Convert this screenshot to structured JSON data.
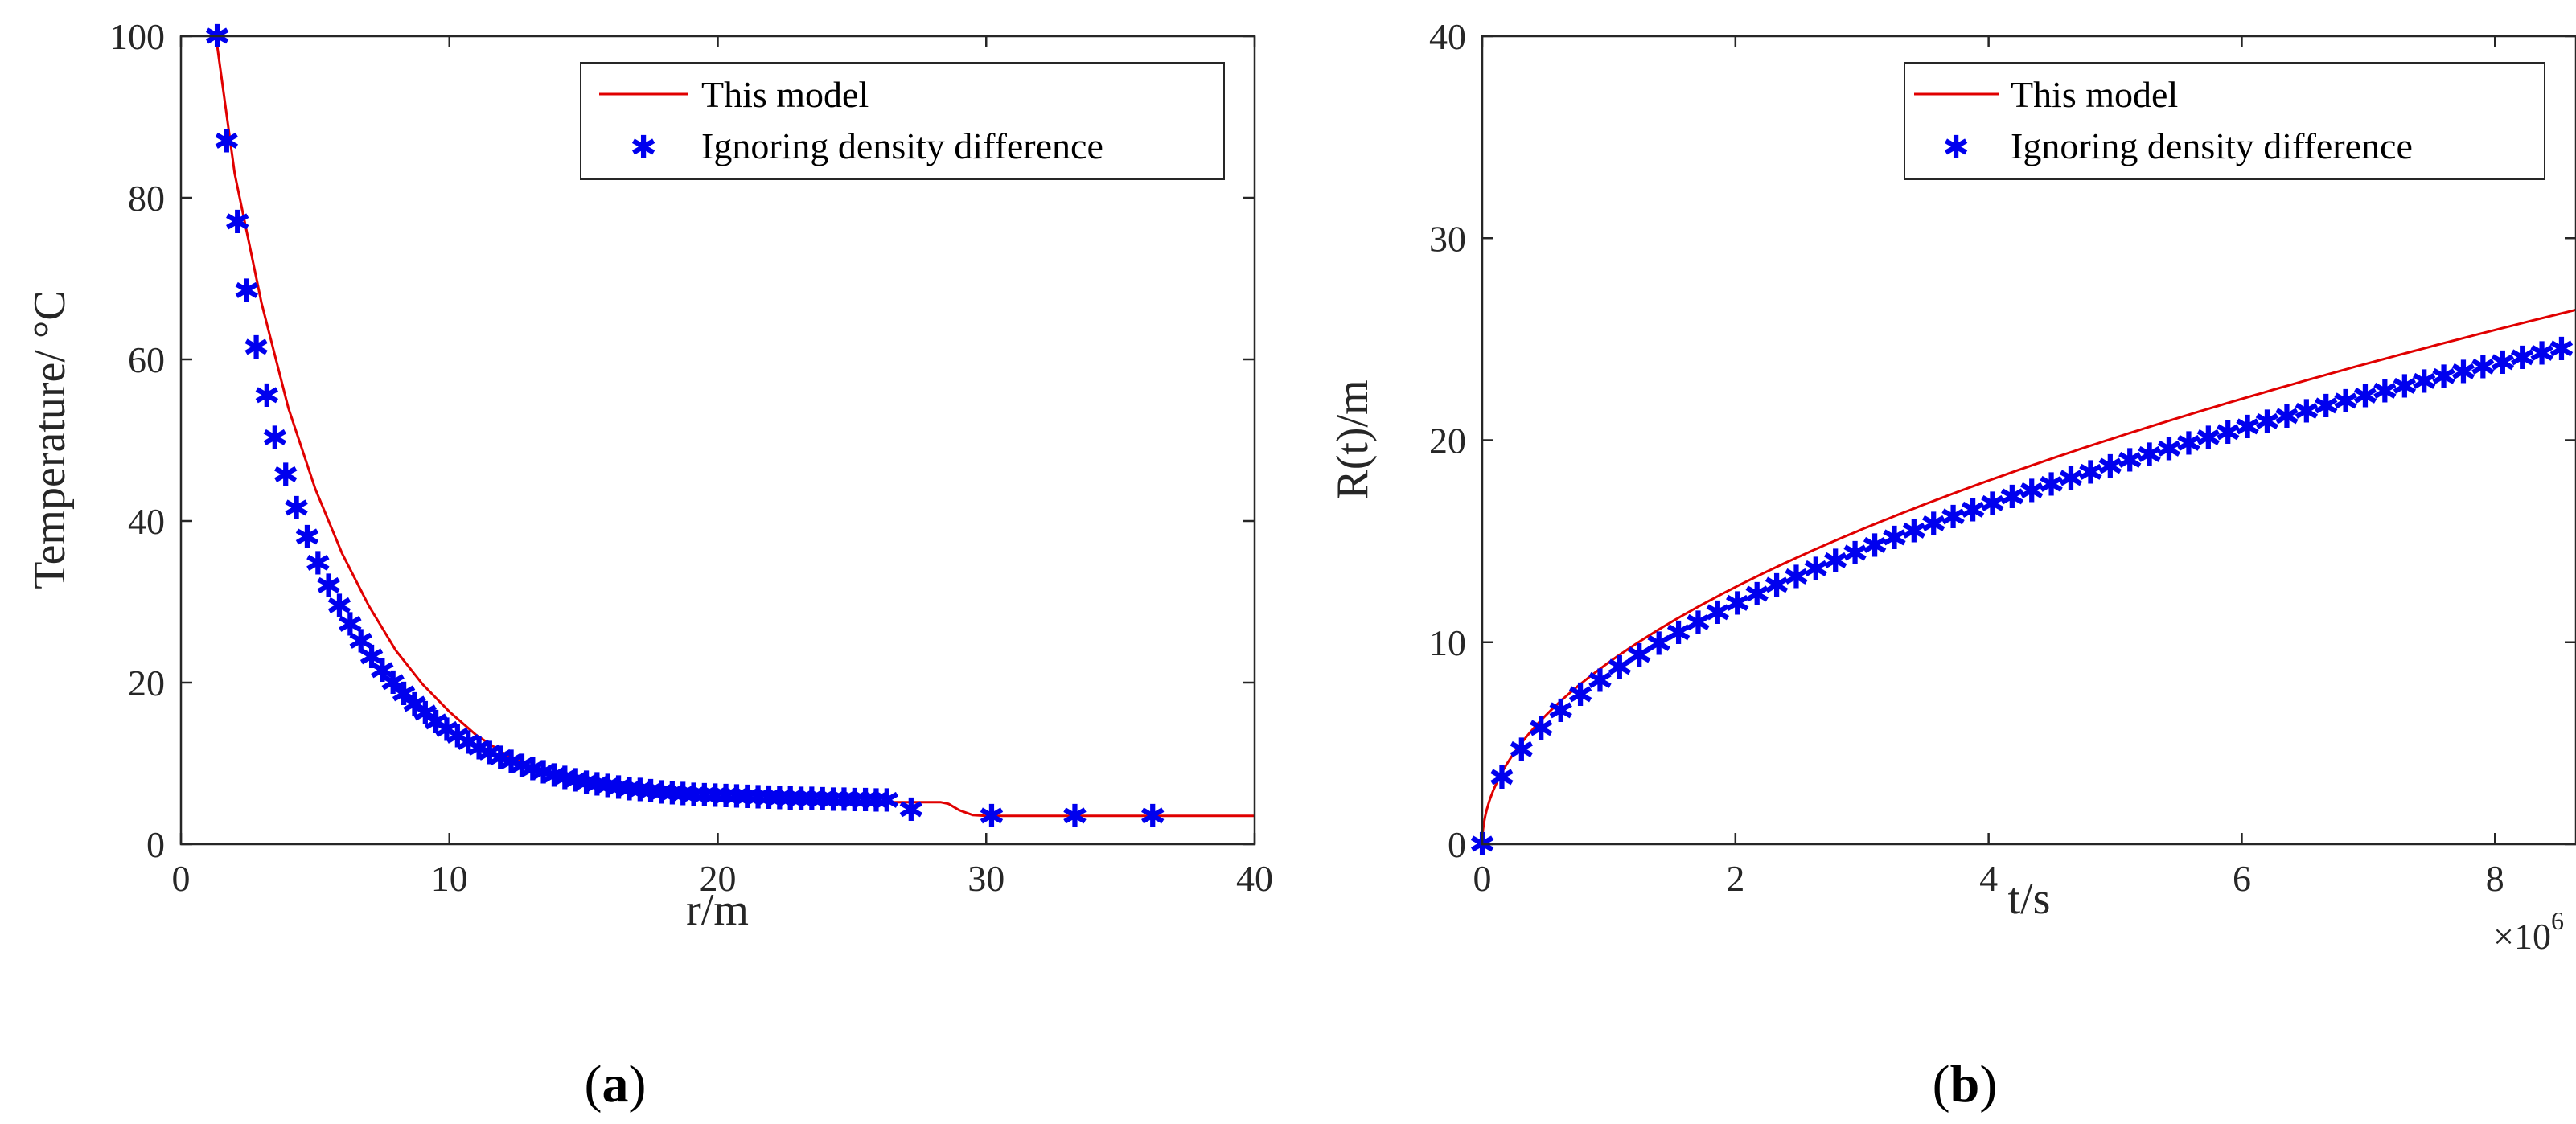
{
  "colors": {
    "model": "#e00000",
    "points": "#0000ee",
    "axis": "#262626"
  },
  "panels": [
    {
      "label": "a"
    },
    {
      "label": "b"
    }
  ],
  "chart_data": [
    {
      "type": "line",
      "panel": "a",
      "xlabel": "r/m",
      "ylabel": "Temperature/ °C",
      "xlim": [
        0,
        40
      ],
      "ylim": [
        0,
        100
      ],
      "xticks": [
        0,
        10,
        20,
        30,
        40
      ],
      "yticks": [
        0,
        20,
        40,
        60,
        80,
        100
      ],
      "legend": {
        "position": "top-right",
        "entries": [
          "This model",
          "Ignoring density difference"
        ]
      },
      "series": [
        {
          "name": "This model",
          "style": "line",
          "x": [
            1.3,
            2,
            3,
            4,
            5,
            6,
            7,
            8,
            9,
            10,
            11,
            12,
            13,
            14,
            15,
            16,
            18,
            20,
            22,
            24,
            26,
            28.3,
            28.6,
            29,
            29.5,
            30,
            32,
            35,
            38,
            40
          ],
          "y": [
            100,
            83,
            67,
            54,
            44,
            36,
            29.5,
            24,
            19.8,
            16.4,
            13.5,
            11.3,
            9.7,
            8.5,
            7.6,
            6.9,
            6.0,
            5.6,
            5.4,
            5.3,
            5.2,
            5.2,
            5.0,
            4.2,
            3.6,
            3.5,
            3.5,
            3.5,
            3.5,
            3.5
          ]
        },
        {
          "name": "Ignoring density difference",
          "style": "markers",
          "x": [
            1.35,
            1.7,
            2.1,
            2.45,
            2.8,
            3.2,
            3.5,
            3.9,
            4.3,
            4.7,
            5.1,
            5.5,
            5.9,
            6.3,
            6.7,
            7.1,
            7.5,
            7.9,
            8.3,
            8.7,
            9.1,
            9.5,
            9.9,
            10.3,
            10.7,
            11.1,
            11.5,
            11.9,
            12.3,
            12.7,
            13.1,
            13.5,
            13.9,
            14.3,
            14.7,
            15.1,
            15.5,
            15.9,
            16.3,
            16.7,
            17.1,
            17.5,
            17.9,
            18.3,
            18.7,
            19.1,
            19.5,
            19.9,
            20.3,
            20.7,
            21.1,
            21.5,
            21.9,
            22.3,
            22.7,
            23.1,
            23.5,
            23.9,
            24.3,
            24.7,
            25.1,
            25.5,
            25.9,
            26.3,
            27.2,
            30.2,
            33.3,
            36.2
          ],
          "y": [
            100,
            87,
            77,
            68.5,
            61.5,
            55.5,
            50.3,
            45.7,
            41.6,
            38,
            34.8,
            32,
            29.5,
            27.2,
            25.1,
            23.2,
            21.5,
            20,
            18.6,
            17.3,
            16.2,
            15.1,
            14.2,
            13.4,
            12.6,
            11.9,
            11.3,
            10.7,
            10.2,
            9.7,
            9.3,
            8.9,
            8.5,
            8.2,
            7.9,
            7.6,
            7.4,
            7.2,
            7.0,
            6.8,
            6.7,
            6.55,
            6.4,
            6.3,
            6.2,
            6.1,
            6.05,
            6.0,
            5.95,
            5.9,
            5.85,
            5.8,
            5.75,
            5.7,
            5.65,
            5.6,
            5.6,
            5.55,
            5.5,
            5.5,
            5.45,
            5.45,
            5.4,
            5.4,
            4.3,
            3.5,
            3.5,
            3.5
          ]
        }
      ]
    },
    {
      "type": "line",
      "panel": "b",
      "xlabel": "t/s",
      "ylabel": "R(t)/m",
      "xlim": [
        0,
        8.64
      ],
      "ylim": [
        0,
        40
      ],
      "xticks": [
        0,
        2,
        4,
        6,
        8
      ],
      "yticks": [
        0,
        10,
        20,
        30,
        40
      ],
      "x_multiplier_base": "×10",
      "x_multiplier_exp": "6",
      "legend": {
        "position": "top-right",
        "entries": [
          "This model",
          "Ignoring density difference"
        ]
      },
      "series": [
        {
          "name": "This model",
          "style": "line",
          "coef": 9.0,
          "note": "R = 9.0 * sqrt(t/1e6)"
        },
        {
          "name": "Ignoring density difference",
          "style": "markers",
          "coef": 8.4,
          "note": "R = 8.4 * sqrt(t/1e6), markers every 0.155e6 s"
        }
      ]
    }
  ]
}
